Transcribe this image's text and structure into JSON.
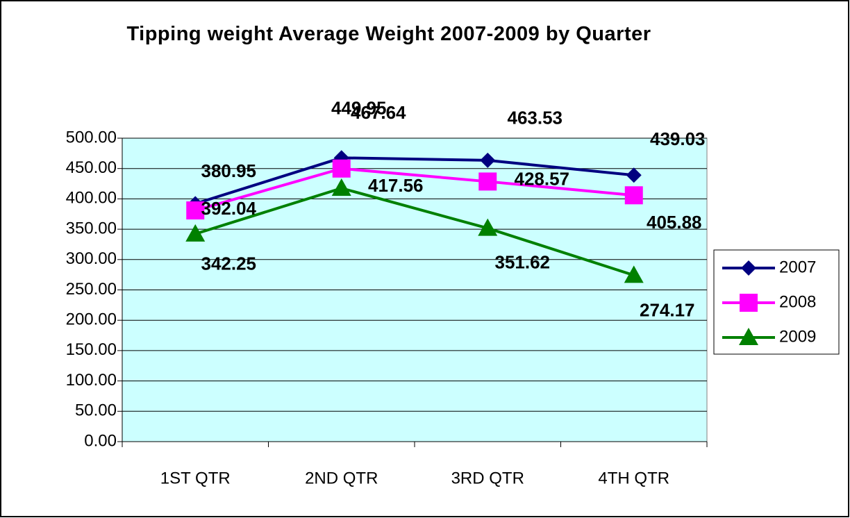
{
  "chart_data": {
    "type": "line",
    "title": "Tipping weight Average Weight 2007-2009 by Quarter",
    "categories": [
      "1ST QTR",
      "2ND QTR",
      "3RD QTR",
      "4TH QTR"
    ],
    "series": [
      {
        "name": "2007",
        "color": "#000080",
        "marker": "diamond",
        "values": [
          392.04,
          467.64,
          463.53,
          439.03
        ]
      },
      {
        "name": "2008",
        "color": "#ff00ff",
        "marker": "square",
        "values": [
          380.95,
          449.95,
          428.57,
          405.88
        ]
      },
      {
        "name": "2009",
        "color": "#008000",
        "marker": "triangle",
        "values": [
          342.25,
          417.56,
          351.62,
          274.17
        ]
      }
    ],
    "ylim": [
      0,
      500
    ],
    "yticks": [
      {
        "value": 0,
        "label": "0.00"
      },
      {
        "value": 50,
        "label": "50.00"
      },
      {
        "value": 100,
        "label": "100.00"
      },
      {
        "value": 150,
        "label": "150.00"
      },
      {
        "value": 200,
        "label": "200.00"
      },
      {
        "value": 250,
        "label": "250.00"
      },
      {
        "value": 300,
        "label": "300.00"
      },
      {
        "value": 350,
        "label": "350.00"
      },
      {
        "value": 400,
        "label": "400.00"
      },
      {
        "value": 450,
        "label": "450.00"
      },
      {
        "value": 500,
        "label": "500.00"
      }
    ],
    "grid": true,
    "plot_background": "#ccffff",
    "legend": "right"
  }
}
